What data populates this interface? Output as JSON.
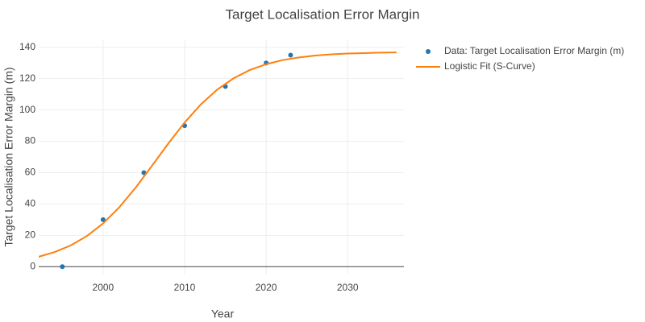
{
  "chart_data": {
    "type": "line",
    "title": "Target Localisation Error Margin",
    "x_label": "Year",
    "y_label": "Target Localisation Error Margin (m)",
    "xlim": [
      1992.1,
      2036.9
    ],
    "ylim": [
      -5,
      145
    ],
    "xticks": [
      2000,
      2010,
      2020,
      2030
    ],
    "yticks": [
      0,
      20,
      40,
      60,
      80,
      100,
      120,
      140
    ],
    "grid": true,
    "legend": "right",
    "series": [
      {
        "name": "Data: Target Localisation Error Margin (m)",
        "mode": "markers",
        "color": "#1f77b4",
        "x": [
          1995,
          2000,
          2005,
          2010,
          2015,
          2020,
          2023
        ],
        "values": [
          0,
          30,
          60,
          90,
          115,
          130,
          135
        ]
      },
      {
        "name": "Logistic Fit (S-Curve)",
        "mode": "lines",
        "color": "#ff7f0e",
        "x": [
          1992,
          1994,
          1996,
          1998,
          2000,
          2002,
          2004,
          2006,
          2008,
          2010,
          2012,
          2014,
          2016,
          2018,
          2020,
          2022,
          2024,
          2026,
          2028,
          2030,
          2032,
          2034,
          2036
        ],
        "values": [
          6.2,
          9.2,
          13.5,
          19.5,
          27.6,
          38.0,
          50.5,
          64.4,
          78.6,
          92.0,
          103.6,
          113.0,
          120.2,
          125.5,
          129.2,
          131.8,
          133.5,
          134.7,
          135.5,
          136.0,
          136.3,
          136.6,
          136.7
        ]
      }
    ]
  }
}
